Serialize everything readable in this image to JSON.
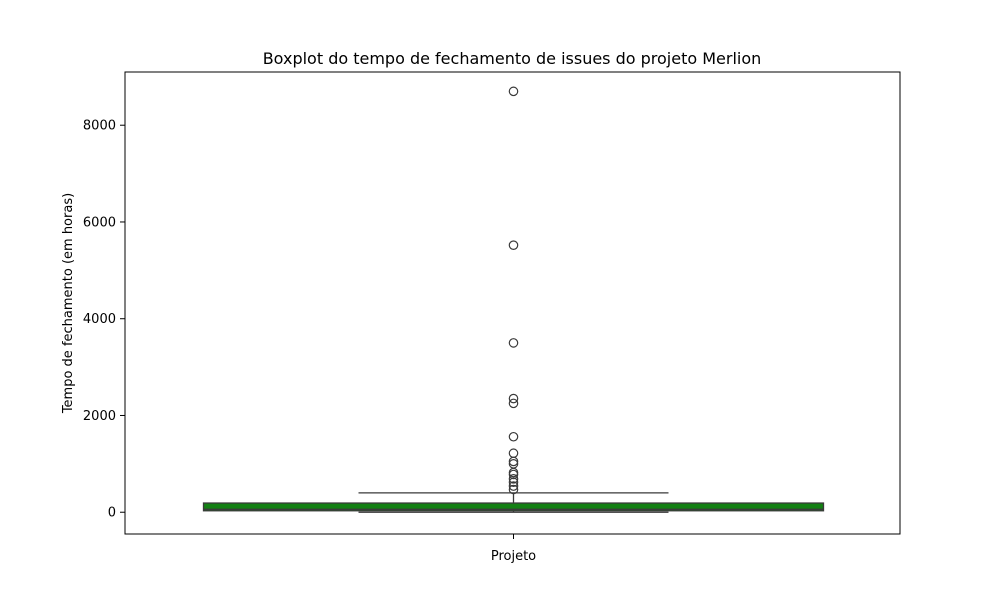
{
  "chart_data": {
    "type": "box",
    "title": "Boxplot do tempo de fechamento de issues do projeto Merlion",
    "xlabel": "",
    "ylabel": "Tempo de fechamento (em horas)",
    "categories": [
      "Projeto"
    ],
    "ylim": [
      -450,
      9100
    ],
    "yticks": [
      0,
      2000,
      4000,
      6000,
      8000
    ],
    "grid": false,
    "box": {
      "q1": 30,
      "median": 60,
      "q3": 190,
      "whisker_low": 0,
      "whisker_high": 400,
      "outliers": [
        8700,
        5520,
        3500,
        2350,
        2250,
        1560,
        1220,
        1050,
        1000,
        820,
        780,
        690,
        620,
        540,
        470
      ]
    },
    "colors": {
      "box_fill": "#138013",
      "box_edge": "#3a3a3a",
      "whisker": "#3a3a3a",
      "outlier_edge": "#3a3a3a"
    }
  }
}
